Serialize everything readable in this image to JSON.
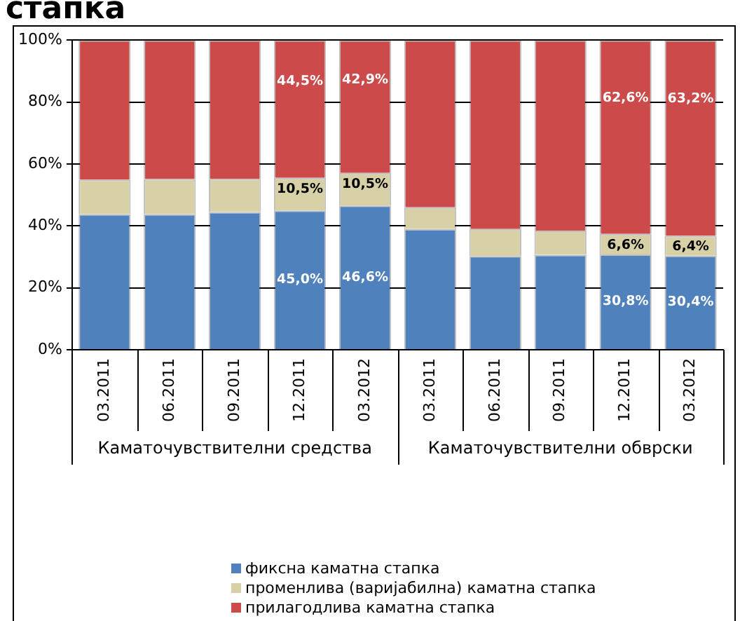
{
  "chart_data": {
    "type": "bar",
    "title": "стапка",
    "stacked": true,
    "categories": [
      "03.2011",
      "06.2011",
      "09.2011",
      "12.2011",
      "03.2012",
      "03.2011",
      "06.2011",
      "09.2011",
      "12.2011",
      "03.2012"
    ],
    "series": [
      {
        "name": "фиксна каматна стапка",
        "color": "#4f81bd",
        "values": [
          43.8,
          43.8,
          44.5,
          45.0,
          46.6,
          39.0,
          30.3,
          30.7,
          30.8,
          30.4
        ],
        "value_labels": [
          null,
          null,
          null,
          "45,0%",
          "46,6%",
          null,
          null,
          null,
          "30,8%",
          "30,4%"
        ]
      },
      {
        "name": "променлива (варијабилна) каматна стапка",
        "color": "#d8d1a8",
        "values": [
          11.1,
          11.3,
          10.6,
          10.5,
          10.5,
          7.0,
          8.7,
          7.8,
          6.6,
          6.4
        ],
        "value_labels": [
          null,
          null,
          null,
          "10,5%",
          "10,5%",
          null,
          null,
          null,
          "6,6%",
          "6,4%"
        ]
      },
      {
        "name": "прилагодлива каматна стапка",
        "color": "#cc4a4a",
        "values": [
          45.1,
          44.9,
          44.9,
          44.5,
          42.9,
          54.0,
          61.0,
          61.5,
          62.6,
          63.2
        ],
        "value_labels": [
          null,
          null,
          null,
          "44,5%",
          "42,9%",
          null,
          null,
          null,
          "62,6%",
          "63,2%"
        ]
      }
    ],
    "ylim": [
      0,
      100
    ],
    "yticks": [
      {
        "value": 0,
        "label": "0%"
      },
      {
        "value": 20,
        "label": "20%"
      },
      {
        "value": 40,
        "label": "40%"
      },
      {
        "value": 60,
        "label": "60%"
      },
      {
        "value": 80,
        "label": "80%"
      },
      {
        "value": 100,
        "label": "100%"
      }
    ],
    "grid": "y",
    "legend": "bottom",
    "annotations": [
      "Каматочувствителни средства",
      "Каматочувствителни обврски"
    ]
  }
}
